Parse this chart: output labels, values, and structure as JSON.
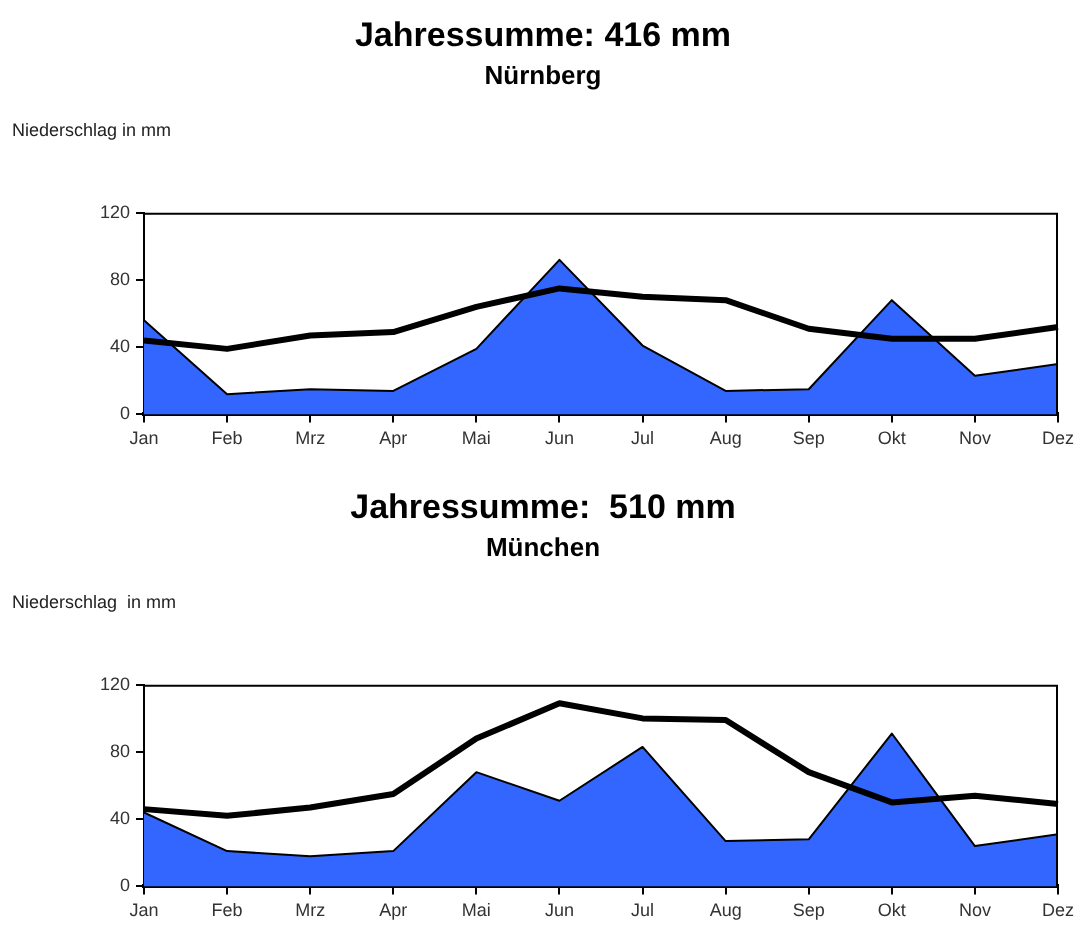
{
  "chart_data": [
    {
      "type": "area",
      "title": "Jahressumme: 416 mm",
      "subtitle": "Nürnberg",
      "ylabel": "Niederschlag in mm",
      "categories": [
        "Jan",
        "Feb",
        "Mrz",
        "Apr",
        "Mai",
        "Jun",
        "Jul",
        "Aug",
        "Sep",
        "Okt",
        "Nov",
        "Dez"
      ],
      "ylim": [
        0,
        120
      ],
      "yticks": [
        0,
        40,
        80,
        120
      ],
      "grid": false,
      "legend": false,
      "marker": "none",
      "series": [
        {
          "type": "area",
          "color": "#3366ff",
          "values": [
            56,
            12,
            15,
            14,
            39,
            92,
            41,
            14,
            15,
            68,
            23,
            30
          ]
        },
        {
          "type": "line",
          "color": "#000000",
          "values": [
            44,
            39,
            47,
            49,
            64,
            75,
            70,
            68,
            51,
            45,
            45,
            52
          ]
        }
      ]
    },
    {
      "type": "area",
      "title": "Jahressumme:  510 mm",
      "subtitle": "München",
      "ylabel": "Niederschlag  in mm",
      "categories": [
        "Jan",
        "Feb",
        "Mrz",
        "Apr",
        "Mai",
        "Jun",
        "Jul",
        "Aug",
        "Sep",
        "Okt",
        "Nov",
        "Dez"
      ],
      "ylim": [
        0,
        120
      ],
      "yticks": [
        0,
        40,
        80,
        120
      ],
      "grid": false,
      "legend": false,
      "marker": "none",
      "series": [
        {
          "type": "area",
          "color": "#3366ff",
          "values": [
            44,
            21,
            18,
            21,
            68,
            51,
            83,
            27,
            28,
            91,
            24,
            31
          ]
        },
        {
          "type": "line",
          "color": "#000000",
          "values": [
            46,
            42,
            47,
            55,
            88,
            109,
            100,
            99,
            68,
            50,
            54,
            49
          ]
        }
      ]
    }
  ]
}
